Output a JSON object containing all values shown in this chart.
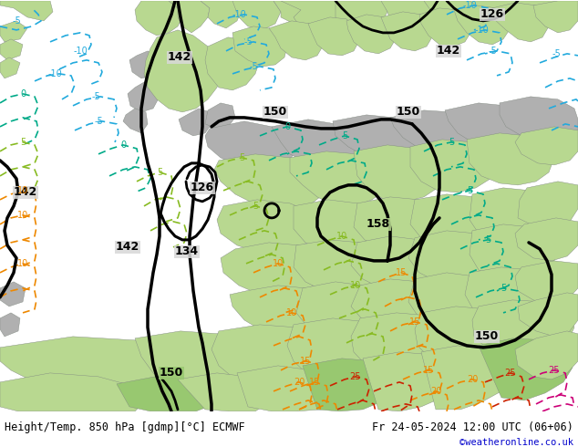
{
  "title_left": "Height/Temp. 850 hPa [gdmp][°C] ECMWF",
  "title_right": "Fr 24-05-2024 12:00 UTC (06+06)",
  "credit": "©weatheronline.co.uk",
  "sea_color": "#d8d8d8",
  "green_light": "#b8d890",
  "green_dark": "#98c870",
  "gray_land": "#b0b0b0",
  "white_bar": "#ffffff",
  "black": "#000000",
  "cyan": "#22aadd",
  "teal": "#00aa88",
  "lime": "#88bb22",
  "orange": "#ee8800",
  "red": "#cc2200",
  "magenta": "#cc0077",
  "title_fs": 8.5,
  "credit_fs": 7.5
}
